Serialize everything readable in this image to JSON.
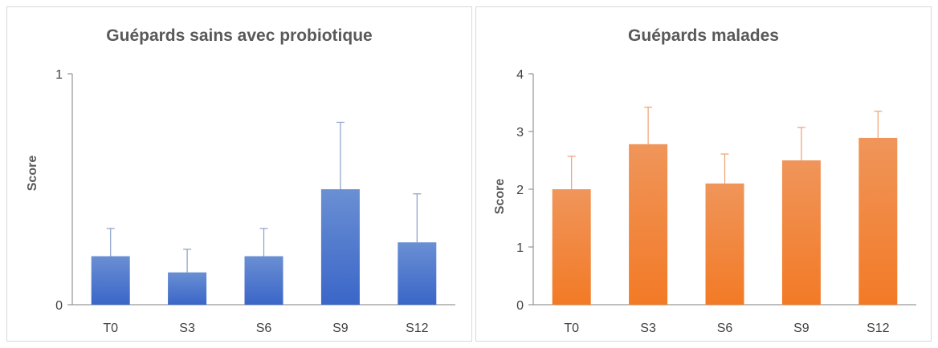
{
  "chart_data": [
    {
      "type": "bar",
      "title": "Guépards sains avec probiotique",
      "ylabel": "Score",
      "xlabel": "",
      "categories": [
        "T0",
        "S3",
        "S6",
        "S9",
        "S12"
      ],
      "values": [
        0.21,
        0.14,
        0.21,
        0.5,
        0.27
      ],
      "errors": [
        0.12,
        0.1,
        0.12,
        0.29,
        0.21
      ],
      "ylim": [
        0,
        1
      ],
      "yticks": [
        0,
        1
      ],
      "ytick_labels": [
        "0",
        "1"
      ],
      "grid": false,
      "legend": "none",
      "colors": {
        "top": "#6a8fd3",
        "bottom": "#3a66c8",
        "error": "#8a9fc8"
      }
    },
    {
      "type": "bar",
      "title": "Guépards malades",
      "ylabel": "Score",
      "xlabel": "",
      "categories": [
        "T0",
        "S3",
        "S6",
        "S9",
        "S12"
      ],
      "values": [
        2.0,
        2.78,
        2.1,
        2.5,
        2.89
      ],
      "errors": [
        0.57,
        0.64,
        0.51,
        0.57,
        0.46
      ],
      "ylim": [
        0,
        4
      ],
      "yticks": [
        0,
        1,
        2,
        3,
        4
      ],
      "ytick_labels": [
        "0",
        "1",
        "2",
        "3",
        "4"
      ],
      "grid": false,
      "legend": "none",
      "colors": {
        "top": "#f0955a",
        "bottom": "#f27a26",
        "error": "#f0a070"
      }
    }
  ]
}
